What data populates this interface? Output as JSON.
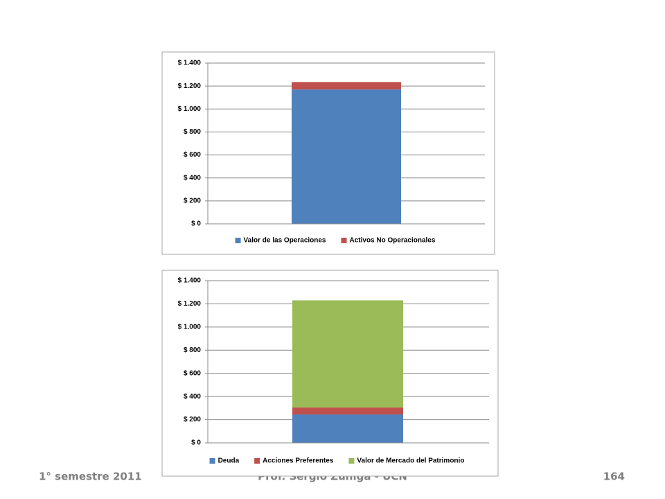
{
  "footer": {
    "left": "1° semestre 2011",
    "center": "Prof. Sergio Zúñiga - UCN",
    "right": "164"
  },
  "chart_data": [
    {
      "type": "stacked_bar",
      "categories": [
        null
      ],
      "series": [
        {
          "name": "Valor de las Operaciones",
          "color": "#4f81bd",
          "values": [
            1170
          ]
        },
        {
          "name": "Activos No Operacionales",
          "color": "#c0504d",
          "values": [
            65
          ]
        }
      ],
      "ylim": [
        0,
        1400
      ],
      "yticks": [
        {
          "value": 0,
          "label": "$ 0"
        },
        {
          "value": 200,
          "label": "$ 200"
        },
        {
          "value": 400,
          "label": "$ 400"
        },
        {
          "value": 600,
          "label": "$ 600"
        },
        {
          "value": 800,
          "label": "$ 800"
        },
        {
          "value": 1000,
          "label": "$ 1.000"
        },
        {
          "value": 1200,
          "label": "$ 1.200"
        },
        {
          "value": 1400,
          "label": "$ 1.400"
        }
      ],
      "grid": true,
      "legend": "bottom"
    },
    {
      "type": "stacked_bar",
      "categories": [
        null
      ],
      "series": [
        {
          "name": "Deuda",
          "color": "#4f81bd",
          "values": [
            245
          ]
        },
        {
          "name": "Acciones Preferentes",
          "color": "#c0504d",
          "values": [
            60
          ]
        },
        {
          "name": "Valor de Mercado del Patrimonio",
          "color": "#9bbb59",
          "values": [
            925
          ]
        }
      ],
      "ylim": [
        0,
        1400
      ],
      "yticks": [
        {
          "value": 0,
          "label": "$ 0"
        },
        {
          "value": 200,
          "label": "$ 200"
        },
        {
          "value": 400,
          "label": "$ 400"
        },
        {
          "value": 600,
          "label": "$ 600"
        },
        {
          "value": 800,
          "label": "$ 800"
        },
        {
          "value": 1000,
          "label": "$ 1.000"
        },
        {
          "value": 1200,
          "label": "$ 1.200"
        },
        {
          "value": 1400,
          "label": "$ 1.400"
        }
      ],
      "grid": true,
      "legend": "bottom"
    }
  ]
}
